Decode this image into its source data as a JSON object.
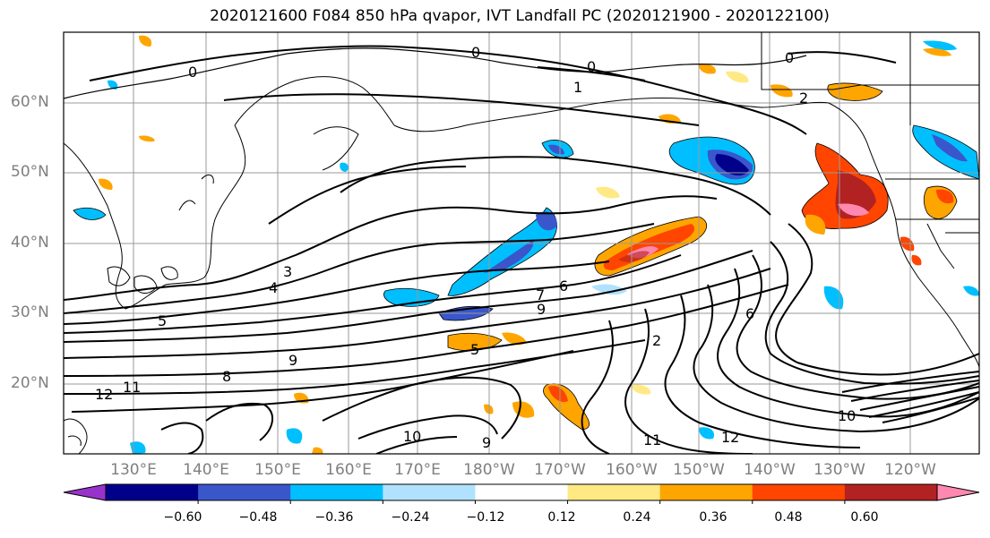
{
  "title": "2020121600 F084 850 hPa qvapor, IVT Landfall PC (2020121900 - 2020122100)",
  "lat_labels": [
    "60°N",
    "50°N",
    "40°N",
    "30°N",
    "20°N"
  ],
  "lon_labels": [
    "130°E",
    "140°E",
    "150°E",
    "160°E",
    "170°E",
    "180°W",
    "170°W",
    "160°W",
    "150°W",
    "140°W",
    "130°W",
    "120°W"
  ],
  "colorbar": {
    "ticks": [
      "−0.60",
      "−0.48",
      "−0.36",
      "−0.24",
      "−0.12",
      "0.12",
      "0.24",
      "0.36",
      "0.48",
      "0.60"
    ],
    "colors": [
      "#9932cc",
      "#00008b",
      "#3a56cb",
      "#00bfff",
      "#b0e2ff",
      "#ffffff",
      "#ffe985",
      "#ffa500",
      "#ff4500",
      "#b22222",
      "#ff88b0"
    ]
  },
  "contour_labels": [
    "0",
    "0",
    "0",
    "0",
    "1",
    "2",
    "3",
    "4",
    "5",
    "5",
    "6",
    "6",
    "7",
    "8",
    "9",
    "9",
    "9",
    "10",
    "10",
    "11",
    "11",
    "12",
    "12",
    "2"
  ]
}
